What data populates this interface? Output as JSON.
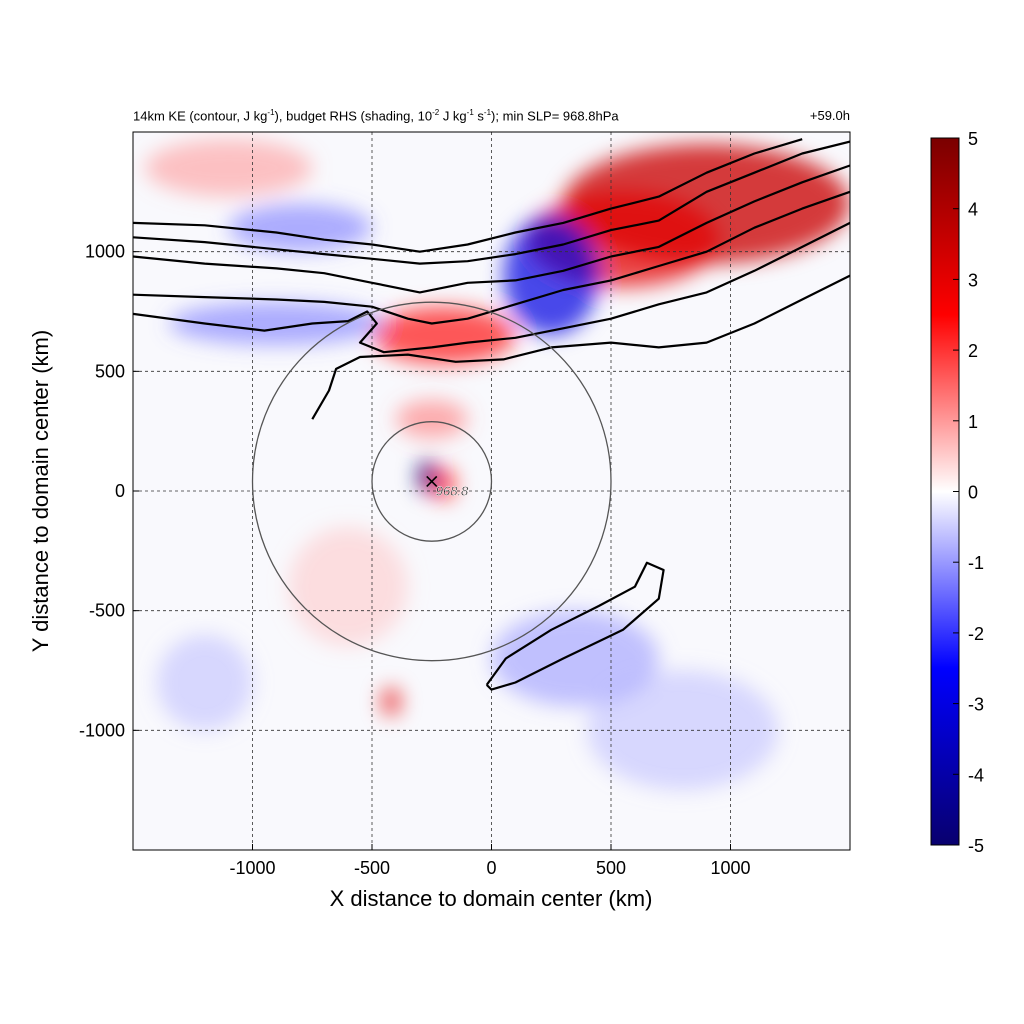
{
  "title": {
    "prefix": "14km KE (contour, J kg",
    "sup1": "-1",
    "mid1": "), budget RHS (shading, 10",
    "sup2": "-2",
    "mid2": " J kg",
    "sup3": "-1",
    "mid3": " s",
    "sup4": "-1",
    "suffix": "); min SLP= 968.8hPa",
    "time": "+59.0h"
  },
  "chart_data": {
    "type": "heatmap",
    "xlabel": "X distance to domain center (km)",
    "ylabel": "Y distance to domain center (km)",
    "xlim": [
      -1500,
      1500
    ],
    "ylim": [
      -1500,
      1500
    ],
    "x_ticks": [
      -1000,
      -500,
      0,
      500,
      1000
    ],
    "y_ticks": [
      -1000,
      -500,
      0,
      500,
      1000
    ],
    "grid": true,
    "colorbar": {
      "ticks": [
        5,
        4,
        3,
        2,
        1,
        0,
        -1,
        -2,
        -3,
        -4,
        -5
      ],
      "range": [
        -5,
        5
      ],
      "colors": [
        "#08006e",
        "#0000ff",
        "#ffffff",
        "#ff0000",
        "#7a0000"
      ]
    },
    "center_marker": {
      "x": -250,
      "y": 40,
      "label": "968.8"
    },
    "range_circles_km": [
      250,
      750
    ],
    "shading_regions": [
      {
        "x": 900,
        "y": 1200,
        "rx": 600,
        "ry": 250,
        "value": 3.5
      },
      {
        "x": 550,
        "y": 1050,
        "rx": 400,
        "ry": 200,
        "value": 3
      },
      {
        "x": 250,
        "y": 900,
        "rx": 200,
        "ry": 250,
        "value": -3
      },
      {
        "x": -200,
        "y": 650,
        "rx": 300,
        "ry": 120,
        "value": 2.5
      },
      {
        "x": -900,
        "y": 700,
        "rx": 450,
        "ry": 90,
        "value": -1.5
      },
      {
        "x": -800,
        "y": 1100,
        "rx": 300,
        "ry": 100,
        "value": -1.5
      },
      {
        "x": -1100,
        "y": 1350,
        "rx": 350,
        "ry": 120,
        "value": 1.2
      },
      {
        "x": -270,
        "y": 60,
        "rx": 40,
        "ry": 70,
        "value": -5
      },
      {
        "x": -200,
        "y": 30,
        "rx": 50,
        "ry": 70,
        "value": 2.5
      },
      {
        "x": -250,
        "y": 300,
        "rx": 150,
        "ry": 80,
        "value": 1.5
      },
      {
        "x": -420,
        "y": -880,
        "rx": 40,
        "ry": 60,
        "value": 3
      },
      {
        "x": 350,
        "y": -700,
        "rx": 350,
        "ry": 200,
        "value": -1.2
      },
      {
        "x": -1200,
        "y": -800,
        "rx": 200,
        "ry": 200,
        "value": -0.8
      },
      {
        "x": 800,
        "y": -1000,
        "rx": 400,
        "ry": 250,
        "value": -0.8
      },
      {
        "x": -600,
        "y": -400,
        "rx": 250,
        "ry": 250,
        "value": 0.7
      }
    ],
    "contours": [
      [
        [
          -1500,
          1120
        ],
        [
          -1200,
          1110
        ],
        [
          -900,
          1080
        ],
        [
          -700,
          1050
        ],
        [
          -500,
          1030
        ],
        [
          -300,
          1000
        ],
        [
          -100,
          1030
        ],
        [
          100,
          1080
        ],
        [
          300,
          1120
        ],
        [
          500,
          1180
        ],
        [
          700,
          1230
        ],
        [
          900,
          1330
        ],
        [
          1100,
          1410
        ],
        [
          1300,
          1470
        ]
      ],
      [
        [
          -1500,
          1060
        ],
        [
          -1200,
          1040
        ],
        [
          -900,
          1010
        ],
        [
          -700,
          990
        ],
        [
          -500,
          970
        ],
        [
          -300,
          950
        ],
        [
          -100,
          960
        ],
        [
          100,
          990
        ],
        [
          300,
          1030
        ],
        [
          500,
          1090
        ],
        [
          700,
          1130
        ],
        [
          900,
          1250
        ],
        [
          1100,
          1330
        ],
        [
          1300,
          1410
        ],
        [
          1500,
          1460
        ]
      ],
      [
        [
          -1500,
          980
        ],
        [
          -1200,
          950
        ],
        [
          -900,
          930
        ],
        [
          -700,
          910
        ],
        [
          -500,
          870
        ],
        [
          -300,
          830
        ],
        [
          -100,
          870
        ],
        [
          100,
          880
        ],
        [
          300,
          920
        ],
        [
          500,
          980
        ],
        [
          700,
          1020
        ],
        [
          900,
          1120
        ],
        [
          1100,
          1210
        ],
        [
          1300,
          1290
        ],
        [
          1500,
          1360
        ]
      ],
      [
        [
          -1500,
          820
        ],
        [
          -1200,
          810
        ],
        [
          -900,
          800
        ],
        [
          -700,
          790
        ],
        [
          -500,
          770
        ],
        [
          -350,
          720
        ],
        [
          -250,
          700
        ],
        [
          -100,
          720
        ],
        [
          100,
          780
        ],
        [
          300,
          840
        ],
        [
          500,
          880
        ],
        [
          700,
          940
        ],
        [
          900,
          1000
        ],
        [
          1100,
          1100
        ],
        [
          1300,
          1180
        ],
        [
          1500,
          1250
        ]
      ],
      [
        [
          -1500,
          740
        ],
        [
          -1200,
          700
        ],
        [
          -950,
          670
        ],
        [
          -750,
          700
        ],
        [
          -600,
          710
        ],
        [
          -520,
          750
        ],
        [
          -480,
          700
        ],
        [
          -550,
          620
        ],
        [
          -450,
          580
        ],
        [
          -250,
          600
        ],
        [
          -100,
          620
        ],
        [
          100,
          640
        ],
        [
          300,
          680
        ],
        [
          500,
          720
        ],
        [
          700,
          780
        ],
        [
          900,
          830
        ],
        [
          1100,
          920
        ],
        [
          1300,
          1020
        ],
        [
          1500,
          1120
        ]
      ],
      [
        [
          -750,
          300
        ],
        [
          -680,
          420
        ],
        [
          -650,
          510
        ],
        [
          -550,
          560
        ],
        [
          -350,
          570
        ],
        [
          -150,
          540
        ],
        [
          50,
          550
        ],
        [
          250,
          600
        ],
        [
          500,
          620
        ],
        [
          700,
          600
        ],
        [
          900,
          620
        ],
        [
          1100,
          700
        ],
        [
          1300,
          800
        ],
        [
          1500,
          900
        ]
      ],
      [
        [
          -20,
          -810
        ],
        [
          60,
          -700
        ],
        [
          250,
          -580
        ],
        [
          450,
          -480
        ],
        [
          600,
          -400
        ],
        [
          650,
          -300
        ],
        [
          720,
          -330
        ],
        [
          700,
          -450
        ],
        [
          550,
          -580
        ],
        [
          300,
          -700
        ],
        [
          100,
          -800
        ],
        [
          0,
          -830
        ],
        [
          -20,
          -810
        ]
      ]
    ]
  }
}
